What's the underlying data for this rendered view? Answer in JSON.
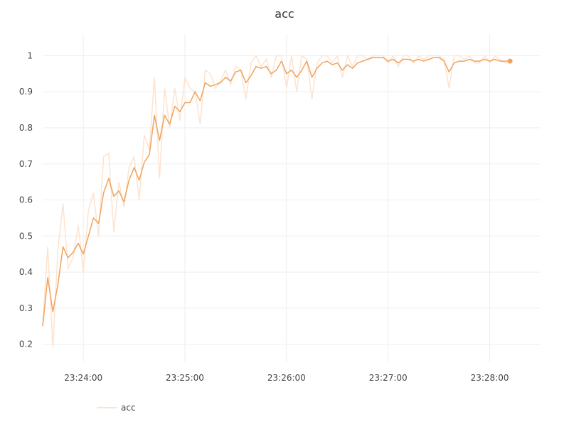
{
  "chart_data": {
    "type": "line",
    "title": "acc",
    "xlabel": "",
    "ylabel": "",
    "x_axis_type": "time",
    "x_ticks": [
      "23:24:00",
      "23:25:00",
      "23:26:00",
      "23:27:00",
      "23:28:00"
    ],
    "x_range": [
      "23:23:36",
      "23:28:30"
    ],
    "y_ticks": [
      0.2,
      0.3,
      0.4,
      0.5,
      0.6,
      0.7,
      0.8,
      0.9,
      1
    ],
    "ylim": [
      0.15,
      1.06
    ],
    "grid": true,
    "legend": {
      "position": "bottom-left",
      "entries": [
        "acc"
      ]
    },
    "colors": {
      "raw": "#fde3cf",
      "smoothed": "#f0a35e",
      "grid": "#eeeeee"
    },
    "series": [
      {
        "name": "acc",
        "x": [
          "23:23:36",
          "23:23:39",
          "23:23:42",
          "23:23:45",
          "23:23:48",
          "23:23:51",
          "23:23:54",
          "23:23:57",
          "23:24:00",
          "23:24:03",
          "23:24:06",
          "23:24:09",
          "23:24:12",
          "23:24:15",
          "23:24:18",
          "23:24:21",
          "23:24:24",
          "23:24:27",
          "23:24:30",
          "23:24:33",
          "23:24:36",
          "23:24:39",
          "23:24:42",
          "23:24:45",
          "23:24:48",
          "23:24:51",
          "23:24:54",
          "23:24:57",
          "23:25:00",
          "23:25:03",
          "23:25:06",
          "23:25:09",
          "23:25:12",
          "23:25:15",
          "23:25:18",
          "23:25:21",
          "23:25:24",
          "23:25:27",
          "23:25:30",
          "23:25:33",
          "23:25:36",
          "23:25:39",
          "23:25:42",
          "23:25:45",
          "23:25:48",
          "23:25:51",
          "23:25:54",
          "23:25:57",
          "23:26:00",
          "23:26:03",
          "23:26:06",
          "23:26:09",
          "23:26:12",
          "23:26:15",
          "23:26:18",
          "23:26:21",
          "23:26:24",
          "23:26:27",
          "23:26:30",
          "23:26:33",
          "23:26:36",
          "23:26:39",
          "23:26:42",
          "23:26:45",
          "23:26:48",
          "23:26:51",
          "23:26:54",
          "23:26:57",
          "23:27:00",
          "23:27:03",
          "23:27:06",
          "23:27:09",
          "23:27:12",
          "23:27:15",
          "23:27:18",
          "23:27:21",
          "23:27:24",
          "23:27:27",
          "23:27:30",
          "23:27:33",
          "23:27:36",
          "23:27:39",
          "23:27:42",
          "23:27:45",
          "23:27:48",
          "23:27:51",
          "23:27:54",
          "23:27:57",
          "23:28:00",
          "23:28:03",
          "23:28:06",
          "23:28:09",
          "23:28:12"
        ],
        "raw": [
          0.25,
          0.47,
          0.19,
          0.46,
          0.59,
          0.41,
          0.44,
          0.53,
          0.4,
          0.57,
          0.62,
          0.5,
          0.72,
          0.73,
          0.51,
          0.65,
          0.58,
          0.69,
          0.72,
          0.6,
          0.78,
          0.74,
          0.94,
          0.66,
          0.91,
          0.8,
          0.91,
          0.82,
          0.94,
          0.91,
          0.9,
          0.81,
          0.96,
          0.95,
          0.91,
          0.93,
          0.96,
          0.92,
          0.97,
          0.96,
          0.88,
          0.98,
          1.0,
          0.97,
          0.99,
          0.94,
          1.0,
          1.0,
          0.91,
          1.0,
          0.9,
          1.0,
          0.99,
          0.88,
          0.98,
          1.0,
          1.0,
          0.98,
          1.0,
          0.94,
          1.0,
          0.97,
          1.0,
          1.0,
          0.99,
          1.0,
          1.0,
          1.0,
          0.98,
          1.0,
          0.97,
          1.0,
          1.0,
          0.98,
          1.0,
          0.99,
          1.0,
          1.0,
          1.0,
          0.99,
          0.91,
          1.0,
          1.0,
          0.99,
          1.0,
          0.98,
          0.98,
          1.0,
          0.98,
          1.0,
          0.99,
          0.98,
          0.98
        ],
        "smoothed": [
          0.25,
          0.385,
          0.29,
          0.365,
          0.47,
          0.44,
          0.455,
          0.48,
          0.45,
          0.5,
          0.55,
          0.535,
          0.62,
          0.66,
          0.61,
          0.625,
          0.595,
          0.655,
          0.69,
          0.655,
          0.705,
          0.725,
          0.835,
          0.765,
          0.835,
          0.81,
          0.86,
          0.845,
          0.87,
          0.87,
          0.9,
          0.875,
          0.925,
          0.915,
          0.92,
          0.925,
          0.94,
          0.93,
          0.955,
          0.96,
          0.925,
          0.945,
          0.97,
          0.965,
          0.97,
          0.95,
          0.96,
          0.985,
          0.95,
          0.96,
          0.94,
          0.96,
          0.985,
          0.94,
          0.965,
          0.98,
          0.985,
          0.975,
          0.98,
          0.96,
          0.975,
          0.965,
          0.98,
          0.985,
          0.99,
          0.995,
          0.995,
          0.995,
          0.985,
          0.99,
          0.98,
          0.99,
          0.99,
          0.985,
          0.99,
          0.985,
          0.99,
          0.995,
          0.995,
          0.985,
          0.955,
          0.98,
          0.985,
          0.985,
          0.99,
          0.985,
          0.985,
          0.99,
          0.985,
          0.99,
          0.985,
          0.985,
          0.985
        ]
      }
    ]
  }
}
